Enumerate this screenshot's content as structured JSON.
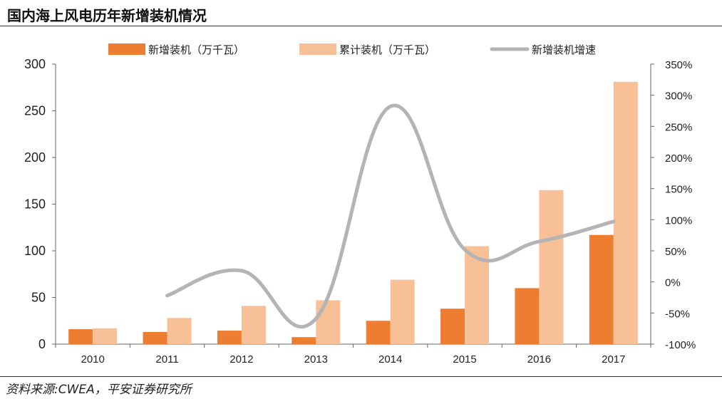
{
  "title": "国内海上风电历年新增装机情况",
  "source": "资料来源:CWEA，平安证券研究所",
  "colors": {
    "new_capacity": "#ED7D31",
    "cumulative": "#F8C096",
    "growth": "#B4B4B4",
    "axis": "#666666"
  },
  "chart_data": {
    "type": "bar",
    "categories": [
      "2010",
      "2011",
      "2012",
      "2013",
      "2014",
      "2015",
      "2016",
      "2017"
    ],
    "series": [
      {
        "name": "新增装机（万千瓦）",
        "type": "bar",
        "axis": "left",
        "values": [
          16,
          13,
          14.5,
          7.5,
          25,
          38,
          60,
          117
        ]
      },
      {
        "name": "累计装机（万千瓦）",
        "type": "bar",
        "axis": "left",
        "values": [
          17,
          28,
          41,
          47,
          69,
          105,
          165,
          281
        ]
      },
      {
        "name": "新增装机增速",
        "type": "line",
        "axis": "right",
        "unit": "%",
        "values": [
          null,
          -22,
          18,
          -59,
          282,
          52,
          65,
          97
        ]
      }
    ],
    "ylim_left": [
      0,
      300
    ],
    "yticks_left": [
      "300",
      "250",
      "200",
      "150",
      "100",
      "50",
      "0"
    ],
    "ylim_right": [
      -100,
      350
    ],
    "yticks_right": [
      "350%",
      "300%",
      "250%",
      "200%",
      "150%",
      "100%",
      "50%",
      "0%",
      "-50%",
      "-100%"
    ],
    "legend_position": "top",
    "grid": false
  }
}
